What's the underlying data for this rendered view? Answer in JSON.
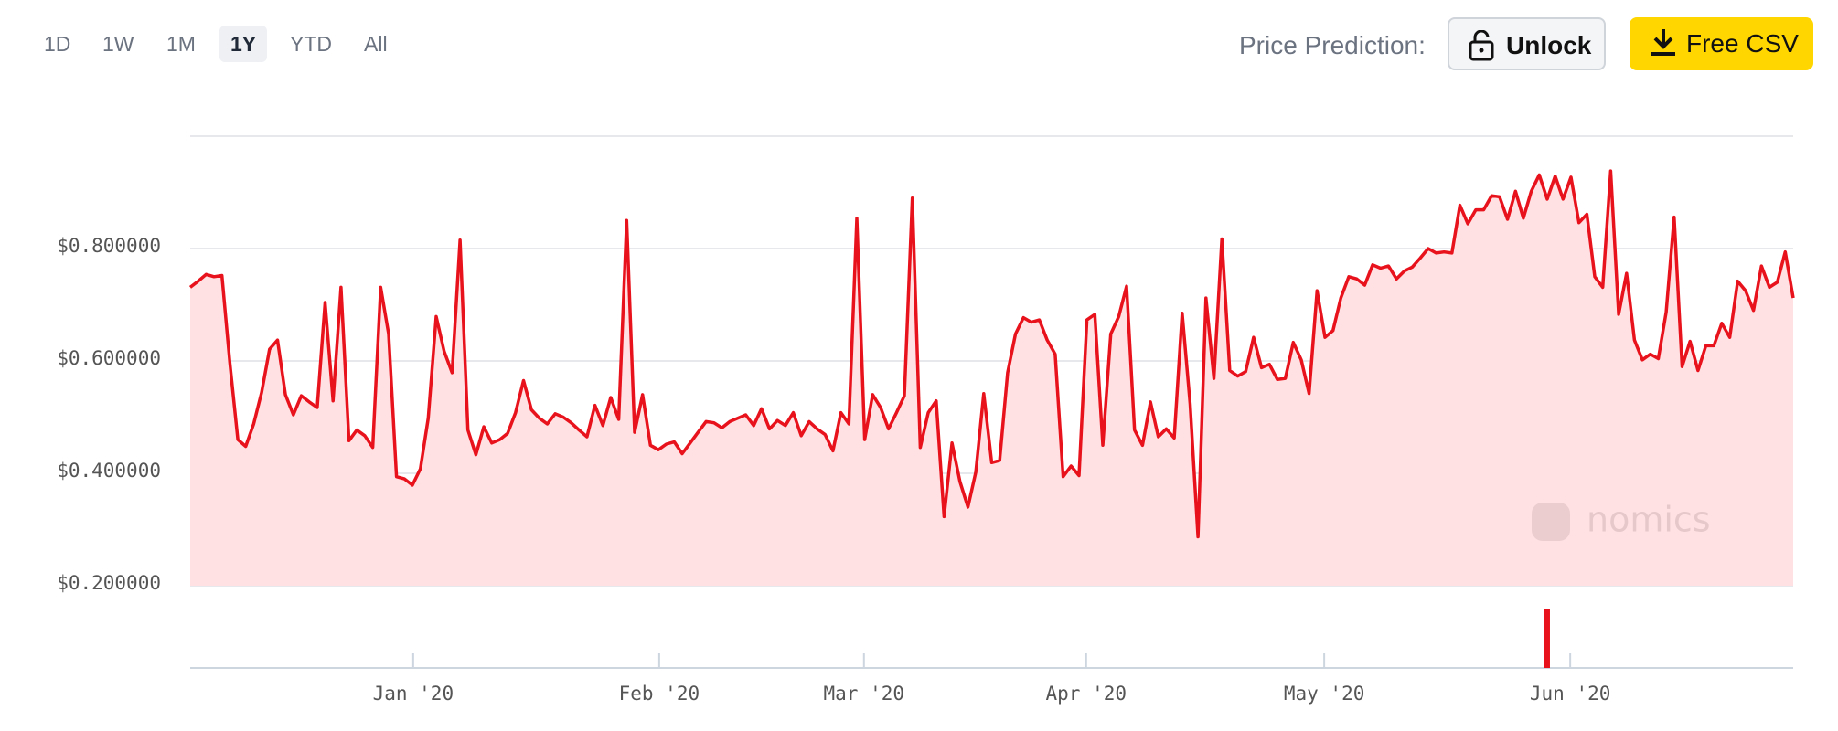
{
  "ui": {
    "ranges": [
      "1D",
      "1W",
      "1M",
      "1Y",
      "YTD",
      "All"
    ],
    "selected_range": 3,
    "price_prediction_label": "Price Prediction:",
    "unlock_button": "Unlock",
    "csv_button": "Free CSV",
    "watermark": "nomics"
  },
  "chart_data": {
    "type": "area",
    "color": "#e8121c",
    "fill": "#ffe1e3",
    "xlim": [
      0,
      202
    ],
    "xticks": [
      {
        "value": 28.1,
        "label": "Jan '20"
      },
      {
        "value": 59.1,
        "label": "Feb '20"
      },
      {
        "value": 84.9,
        "label": "Mar '20"
      },
      {
        "value": 112.9,
        "label": "Apr '20"
      },
      {
        "value": 142.9,
        "label": "May '20"
      },
      {
        "value": 173.9,
        "label": "Jun '20"
      }
    ],
    "ylim": [
      0.2,
      1.0
    ],
    "yticks": [
      {
        "value": 0.2,
        "label": "$0.200000"
      },
      {
        "value": 0.4,
        "label": "$0.400000"
      },
      {
        "value": 0.6,
        "label": "$0.600000"
      },
      {
        "value": 0.8,
        "label": "$0.800000"
      }
    ],
    "grid": true,
    "values": [
      0.731,
      0.742,
      0.754,
      0.75,
      0.752,
      0.596,
      0.46,
      0.448,
      0.488,
      0.544,
      0.621,
      0.637,
      0.54,
      0.504,
      0.538,
      0.527,
      0.517,
      0.704,
      0.529,
      0.731,
      0.458,
      0.477,
      0.467,
      0.446,
      0.731,
      0.648,
      0.394,
      0.39,
      0.379,
      0.408,
      0.498,
      0.679,
      0.617,
      0.579,
      0.815,
      0.477,
      0.433,
      0.483,
      0.454,
      0.46,
      0.471,
      0.508,
      0.565,
      0.513,
      0.498,
      0.488,
      0.506,
      0.5,
      0.49,
      0.477,
      0.465,
      0.521,
      0.485,
      0.535,
      0.496,
      0.85,
      0.473,
      0.54,
      0.45,
      0.442,
      0.452,
      0.456,
      0.435,
      0.454,
      0.473,
      0.492,
      0.49,
      0.481,
      0.492,
      0.498,
      0.504,
      0.485,
      0.515,
      0.479,
      0.494,
      0.485,
      0.508,
      0.467,
      0.492,
      0.479,
      0.469,
      0.44,
      0.508,
      0.488,
      0.854,
      0.46,
      0.54,
      0.517,
      0.479,
      0.508,
      0.538,
      0.89,
      0.446,
      0.508,
      0.529,
      0.323,
      0.454,
      0.385,
      0.34,
      0.402,
      0.542,
      0.419,
      0.423,
      0.579,
      0.648,
      0.677,
      0.669,
      0.673,
      0.637,
      0.612,
      0.394,
      0.413,
      0.396,
      0.673,
      0.683,
      0.45,
      0.648,
      0.679,
      0.733,
      0.477,
      0.45,
      0.527,
      0.465,
      0.479,
      0.463,
      0.685,
      0.523,
      0.287,
      0.712,
      0.569,
      0.817,
      0.583,
      0.573,
      0.581,
      0.642,
      0.588,
      0.594,
      0.567,
      0.569,
      0.633,
      0.602,
      0.542,
      0.725,
      0.642,
      0.654,
      0.712,
      0.75,
      0.746,
      0.735,
      0.771,
      0.765,
      0.769,
      0.746,
      0.76,
      0.767,
      0.783,
      0.8,
      0.792,
      0.794,
      0.792,
      0.877,
      0.844,
      0.869,
      0.869,
      0.894,
      0.892,
      0.852,
      0.902,
      0.854,
      0.902,
      0.931,
      0.888,
      0.929,
      0.888,
      0.927,
      0.846,
      0.861,
      0.75,
      0.731,
      0.938,
      0.683,
      0.756,
      0.637,
      0.602,
      0.612,
      0.604,
      0.687,
      0.856,
      0.59,
      0.635,
      0.583,
      0.627,
      0.627,
      0.667,
      0.642,
      0.742,
      0.725,
      0.69,
      0.769,
      0.731,
      0.74,
      0.794,
      0.712
    ],
    "volume": {
      "ylim": [
        0,
        1
      ],
      "index": 171,
      "value": 0.75
    }
  }
}
